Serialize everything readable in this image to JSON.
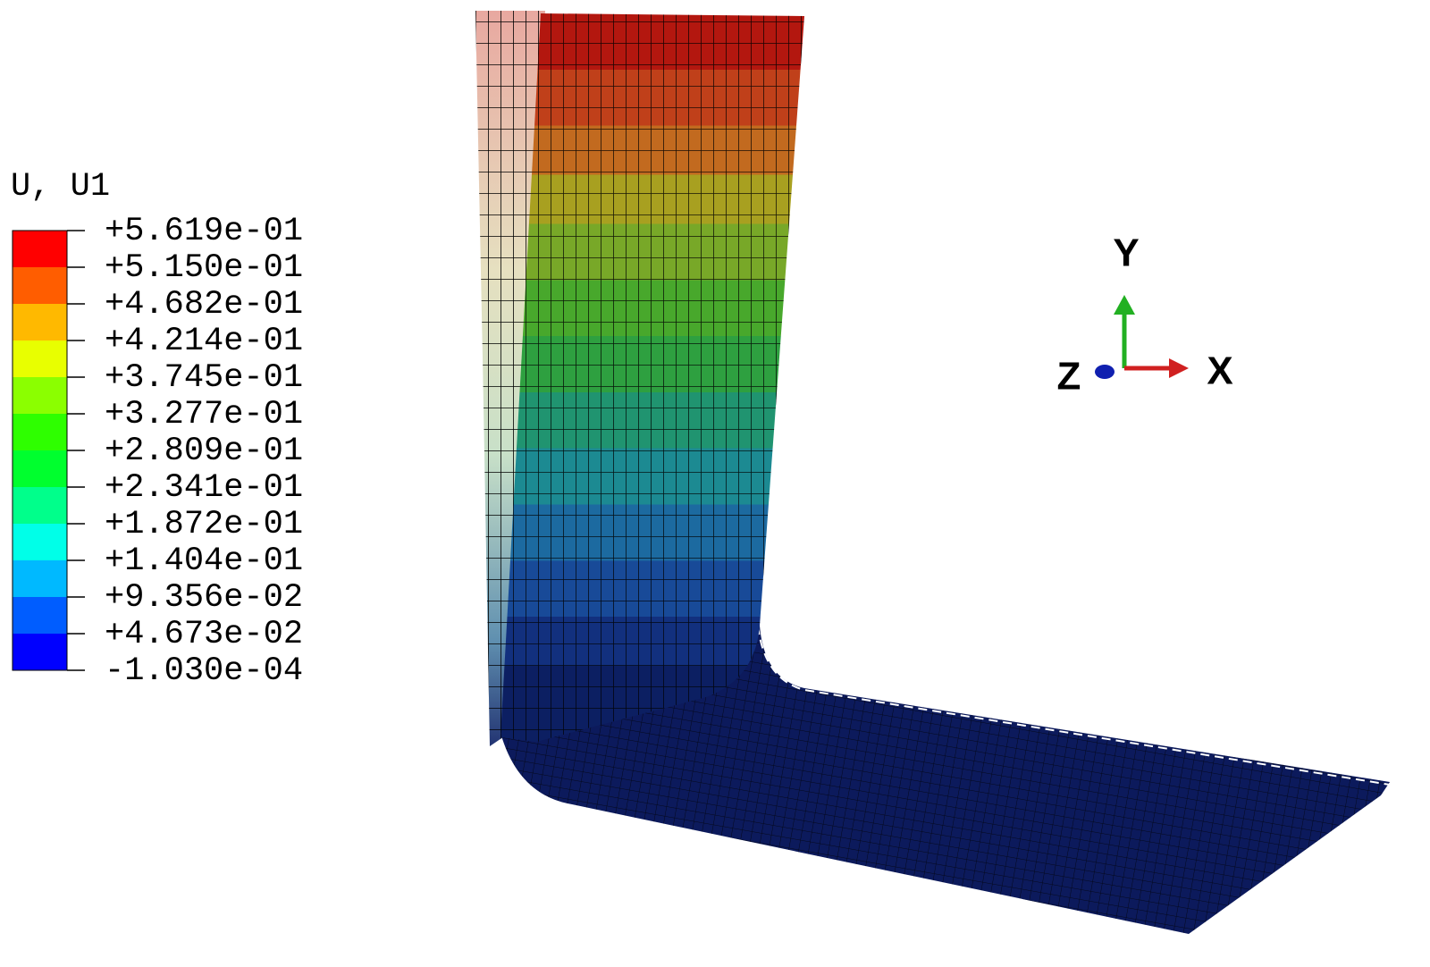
{
  "legend": {
    "title": "U, U1",
    "labels": [
      "+5.619e-01",
      "+5.150e-01",
      "+4.682e-01",
      "+4.214e-01",
      "+3.745e-01",
      "+3.277e-01",
      "+2.809e-01",
      "+2.341e-01",
      "+1.872e-01",
      "+1.404e-01",
      "+9.356e-02",
      "+4.673e-02",
      "-1.030e-04"
    ]
  },
  "triad": {
    "y": "Y",
    "z": "Z",
    "x": "X"
  }
}
